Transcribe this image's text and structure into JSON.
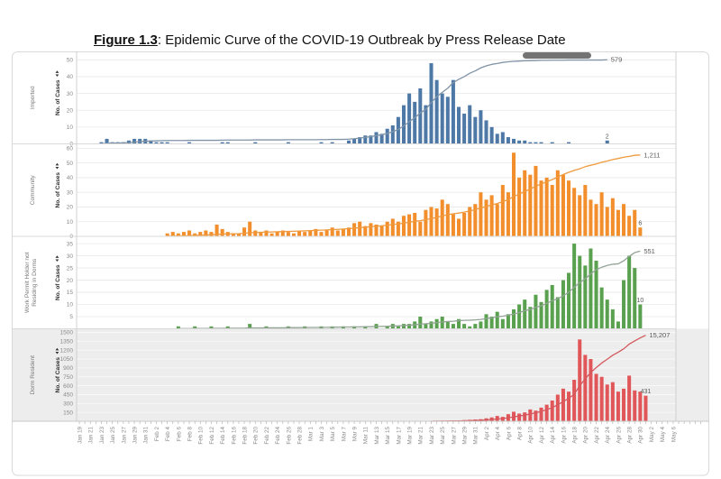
{
  "title": {
    "figure_label": "Figure 1.3",
    "rest": ": Epidemic Curve of the COVID-19 Outbreak by Press Release Date"
  },
  "chart_data": {
    "type": "bar",
    "title": "Epidemic Curve of the COVID-19 Outbreak by Press Release Date",
    "ylabel": "No. of Cases",
    "grid": true,
    "legend": "none",
    "x_axis": {
      "label_interval": 2,
      "dates": [
        "Jan 19",
        "Jan 20",
        "Jan 21",
        "Jan 22",
        "Jan 23",
        "Jan 24",
        "Jan 25",
        "Jan 26",
        "Jan 27",
        "Jan 28",
        "Jan 29",
        "Jan 30",
        "Jan 31",
        "Feb 1",
        "Feb 2",
        "Feb 3",
        "Feb 4",
        "Feb 5",
        "Feb 6",
        "Feb 7",
        "Feb 8",
        "Feb 9",
        "Feb 10",
        "Feb 11",
        "Feb 12",
        "Feb 13",
        "Feb 14",
        "Feb 15",
        "Feb 16",
        "Feb 17",
        "Feb 18",
        "Feb 19",
        "Feb 20",
        "Feb 21",
        "Feb 22",
        "Feb 23",
        "Feb 24",
        "Feb 25",
        "Feb 26",
        "Feb 27",
        "Feb 28",
        "Feb 29",
        "Mar 1",
        "Mar 2",
        "Mar 3",
        "Mar 4",
        "Mar 5",
        "Mar 6",
        "Mar 7",
        "Mar 8",
        "Mar 9",
        "Mar 10",
        "Mar 11",
        "Mar 12",
        "Mar 13",
        "Mar 14",
        "Mar 15",
        "Mar 16",
        "Mar 17",
        "Mar 18",
        "Mar 19",
        "Mar 20",
        "Mar 21",
        "Mar 22",
        "Mar 23",
        "Mar 24",
        "Mar 25",
        "Mar 26",
        "Mar 27",
        "Mar 28",
        "Mar 29",
        "Mar 30",
        "Mar 31",
        "Apr 1",
        "Apr 2",
        "Apr 3",
        "Apr 4",
        "Apr 5",
        "Apr 6",
        "Apr 7",
        "Apr 8",
        "Apr 9",
        "Apr 10",
        "Apr 11",
        "Apr 12",
        "Apr 13",
        "Apr 14",
        "Apr 15",
        "Apr 16",
        "Apr 17",
        "Apr 18",
        "Apr 19",
        "Apr 20",
        "Apr 21",
        "Apr 22",
        "Apr 23",
        "Apr 24",
        "Apr 25",
        "Apr 26",
        "Apr 27",
        "Apr 28",
        "Apr 29",
        "Apr 30",
        "May 1",
        "May 2",
        "May 3",
        "May 4",
        "May 5",
        "May 6"
      ]
    },
    "panels": [
      {
        "row_label_lines": [
          "Imported"
        ],
        "ylabel": "No. of Cases",
        "bar_color": "#4e79a7",
        "line_color": "#8093a7",
        "label_color": "#5f6e80",
        "band_color": "",
        "ylim": 55,
        "yticks": [
          0,
          10,
          20,
          30,
          40,
          50
        ],
        "cumulative_label": "579",
        "last_bar_label": "2",
        "line_top_frac": 0.91,
        "values": {
          "Jan 23": 1,
          "Jan 24": 3,
          "Jan 25": 1,
          "Jan 26": 1,
          "Jan 27": 1,
          "Jan 28": 2,
          "Jan 29": 3,
          "Jan 30": 3,
          "Jan 31": 3,
          "Feb 1": 2,
          "Feb 2": 1,
          "Feb 3": 1,
          "Feb 4": 1,
          "Feb 8": 1,
          "Feb 14": 1,
          "Feb 15": 1,
          "Feb 20": 1,
          "Feb 26": 1,
          "Mar 3": 1,
          "Mar 5": 1,
          "Mar 8": 2,
          "Mar 9": 3,
          "Mar 10": 4,
          "Mar 11": 5,
          "Mar 12": 5,
          "Mar 13": 7,
          "Mar 14": 6,
          "Mar 15": 9,
          "Mar 16": 11,
          "Mar 17": 16,
          "Mar 18": 23,
          "Mar 19": 30,
          "Mar 20": 25,
          "Mar 21": 33,
          "Mar 22": 23,
          "Mar 23": 48,
          "Mar 24": 38,
          "Mar 25": 30,
          "Mar 26": 28,
          "Mar 27": 38,
          "Mar 28": 22,
          "Mar 29": 18,
          "Mar 30": 23,
          "Mar 31": 16,
          "Apr 1": 20,
          "Apr 2": 14,
          "Apr 3": 10,
          "Apr 4": 6,
          "Apr 5": 7,
          "Apr 6": 4,
          "Apr 7": 3,
          "Apr 8": 2,
          "Apr 9": 2,
          "Apr 10": 1,
          "Apr 11": 1,
          "Apr 12": 1,
          "Apr 14": 1,
          "Apr 17": 1,
          "Apr 24": 2
        }
      },
      {
        "row_label_lines": [
          "Community"
        ],
        "ylabel": "No. of Cases",
        "bar_color": "#f28e2b",
        "line_color": "#ef9a3e",
        "label_color": "#7a6a55",
        "band_color": "",
        "ylim": 63,
        "yticks": [
          0,
          10,
          20,
          30,
          40,
          50,
          60
        ],
        "cumulative_label": "1,211",
        "last_bar_label": "6",
        "line_top_frac": 0.88,
        "values": {
          "Feb 4": 2,
          "Feb 5": 3,
          "Feb 6": 2,
          "Feb 7": 3,
          "Feb 8": 4,
          "Feb 9": 2,
          "Feb 10": 3,
          "Feb 11": 4,
          "Feb 12": 3,
          "Feb 13": 8,
          "Feb 14": 5,
          "Feb 15": 3,
          "Feb 16": 2,
          "Feb 17": 2,
          "Feb 18": 6,
          "Feb 19": 10,
          "Feb 20": 4,
          "Feb 21": 3,
          "Feb 22": 4,
          "Feb 23": 2,
          "Feb 24": 3,
          "Feb 25": 4,
          "Feb 26": 3,
          "Feb 27": 2,
          "Feb 28": 4,
          "Feb 29": 3,
          "Mar 1": 4,
          "Mar 2": 5,
          "Mar 3": 3,
          "Mar 4": 4,
          "Mar 5": 6,
          "Mar 6": 4,
          "Mar 7": 5,
          "Mar 8": 6,
          "Mar 9": 9,
          "Mar 10": 10,
          "Mar 11": 7,
          "Mar 12": 9,
          "Mar 13": 8,
          "Mar 14": 7,
          "Mar 15": 10,
          "Mar 16": 12,
          "Mar 17": 10,
          "Mar 18": 14,
          "Mar 19": 15,
          "Mar 20": 16,
          "Mar 21": 10,
          "Mar 22": 18,
          "Mar 23": 20,
          "Mar 24": 19,
          "Mar 25": 25,
          "Mar 26": 22,
          "Mar 27": 15,
          "Mar 28": 12,
          "Mar 29": 16,
          "Mar 30": 20,
          "Mar 31": 22,
          "Apr 1": 30,
          "Apr 2": 25,
          "Apr 3": 28,
          "Apr 4": 22,
          "Apr 5": 35,
          "Apr 6": 30,
          "Apr 7": 57,
          "Apr 8": 40,
          "Apr 9": 45,
          "Apr 10": 42,
          "Apr 11": 48,
          "Apr 12": 38,
          "Apr 13": 40,
          "Apr 14": 35,
          "Apr 15": 45,
          "Apr 16": 42,
          "Apr 17": 38,
          "Apr 18": 33,
          "Apr 19": 28,
          "Apr 20": 35,
          "Apr 21": 25,
          "Apr 22": 22,
          "Apr 23": 30,
          "Apr 24": 20,
          "Apr 25": 26,
          "Apr 26": 18,
          "Apr 27": 22,
          "Apr 28": 14,
          "Apr 29": 18,
          "Apr 30": 6
        }
      },
      {
        "row_label_lines": [
          "Work Permit Holder not",
          "Residing in Dorms"
        ],
        "ylabel": "No. of Cases",
        "bar_color": "#59a14f",
        "line_color": "#93a396",
        "label_color": "#5e6e60",
        "band_color": "",
        "ylim": 38,
        "yticks": [
          5,
          10,
          15,
          20,
          25,
          30,
          35
        ],
        "cumulative_label": "551",
        "last_bar_label": "10",
        "line_top_frac": 0.84,
        "values": {
          "Feb 6": 1,
          "Feb 9": 1,
          "Feb 12": 1,
          "Feb 15": 1,
          "Feb 19": 2,
          "Feb 22": 1,
          "Feb 26": 1,
          "Feb 29": 1,
          "Mar 3": 1,
          "Mar 5": 1,
          "Mar 7": 1,
          "Mar 9": 1,
          "Mar 11": 1,
          "Mar 13": 2,
          "Mar 15": 1,
          "Mar 16": 2,
          "Mar 17": 1,
          "Mar 18": 2,
          "Mar 19": 2,
          "Mar 20": 3,
          "Mar 21": 5,
          "Mar 22": 2,
          "Mar 23": 3,
          "Mar 24": 4,
          "Mar 25": 5,
          "Mar 26": 3,
          "Mar 27": 2,
          "Mar 28": 4,
          "Mar 29": 2,
          "Mar 30": 1,
          "Mar 31": 2,
          "Apr 1": 3,
          "Apr 2": 6,
          "Apr 3": 5,
          "Apr 4": 7,
          "Apr 5": 4,
          "Apr 6": 6,
          "Apr 7": 8,
          "Apr 8": 10,
          "Apr 9": 12,
          "Apr 10": 9,
          "Apr 11": 14,
          "Apr 12": 11,
          "Apr 13": 16,
          "Apr 14": 18,
          "Apr 15": 13,
          "Apr 16": 20,
          "Apr 17": 23,
          "Apr 18": 35,
          "Apr 19": 30,
          "Apr 20": 26,
          "Apr 21": 33,
          "Apr 22": 28,
          "Apr 23": 17,
          "Apr 24": 12,
          "Apr 25": 8,
          "Apr 26": 3,
          "Apr 27": 20,
          "Apr 28": 30,
          "Apr 29": 25,
          "Apr 30": 10
        }
      },
      {
        "row_label_lines": [
          "Dorm Resident"
        ],
        "ylabel": "No. of Cases",
        "bar_color": "#e15759",
        "line_color": "#d4595f",
        "label_color": "#6e5253",
        "band_color": "#ededed",
        "ylim": 1560,
        "yticks": [
          150,
          300,
          450,
          600,
          750,
          900,
          1050,
          1200,
          1350,
          1500
        ],
        "cumulative_label": "15,207",
        "last_bar_label": "431",
        "line_top_frac": 0.93,
        "values": {
          "Mar 23": 5,
          "Mar 24": 8,
          "Mar 25": 10,
          "Mar 26": 8,
          "Mar 27": 15,
          "Mar 28": 12,
          "Mar 29": 20,
          "Mar 30": 25,
          "Mar 31": 30,
          "Apr 1": 35,
          "Apr 2": 50,
          "Apr 3": 65,
          "Apr 4": 90,
          "Apr 5": 75,
          "Apr 6": 120,
          "Apr 7": 160,
          "Apr 8": 130,
          "Apr 9": 150,
          "Apr 10": 200,
          "Apr 11": 180,
          "Apr 12": 230,
          "Apr 13": 280,
          "Apr 14": 350,
          "Apr 15": 450,
          "Apr 16": 550,
          "Apr 17": 500,
          "Apr 18": 700,
          "Apr 19": 1380,
          "Apr 20": 1120,
          "Apr 21": 1050,
          "Apr 22": 800,
          "Apr 23": 750,
          "Apr 24": 620,
          "Apr 25": 660,
          "Apr 26": 500,
          "Apr 27": 550,
          "Apr 28": 770,
          "Apr 29": 520,
          "Apr 30": 500,
          "May 1": 431
        }
      }
    ],
    "style": {
      "axis_text_color": "#8a8a8a",
      "ylabel_color": "#2e2e2e",
      "row_label_color": "#7a7a7a",
      "grid_color": "#e9e9e9",
      "frame_color": "#d9d9d9",
      "value_label_color": "#595959",
      "sort_icon": "sort-icon"
    }
  }
}
